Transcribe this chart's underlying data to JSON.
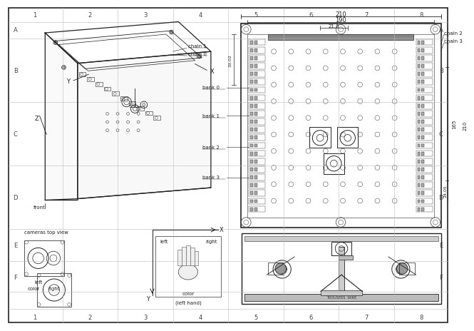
{
  "bg_color": "#f0f0f0",
  "line_color": "#555555",
  "dark_line": "#222222",
  "col_labels": [
    "1",
    "2",
    "3",
    "4",
    "5",
    "6",
    "7",
    "8"
  ],
  "row_labels": [
    "A",
    "B",
    "C",
    "D",
    "E",
    "F"
  ],
  "dim_210": "210",
  "dim_190": "190",
  "dim_218": "21.8",
  "dim_3302": "33.02",
  "dim_165": "165",
  "dim_2405": "24.05",
  "dim_210v": "210"
}
